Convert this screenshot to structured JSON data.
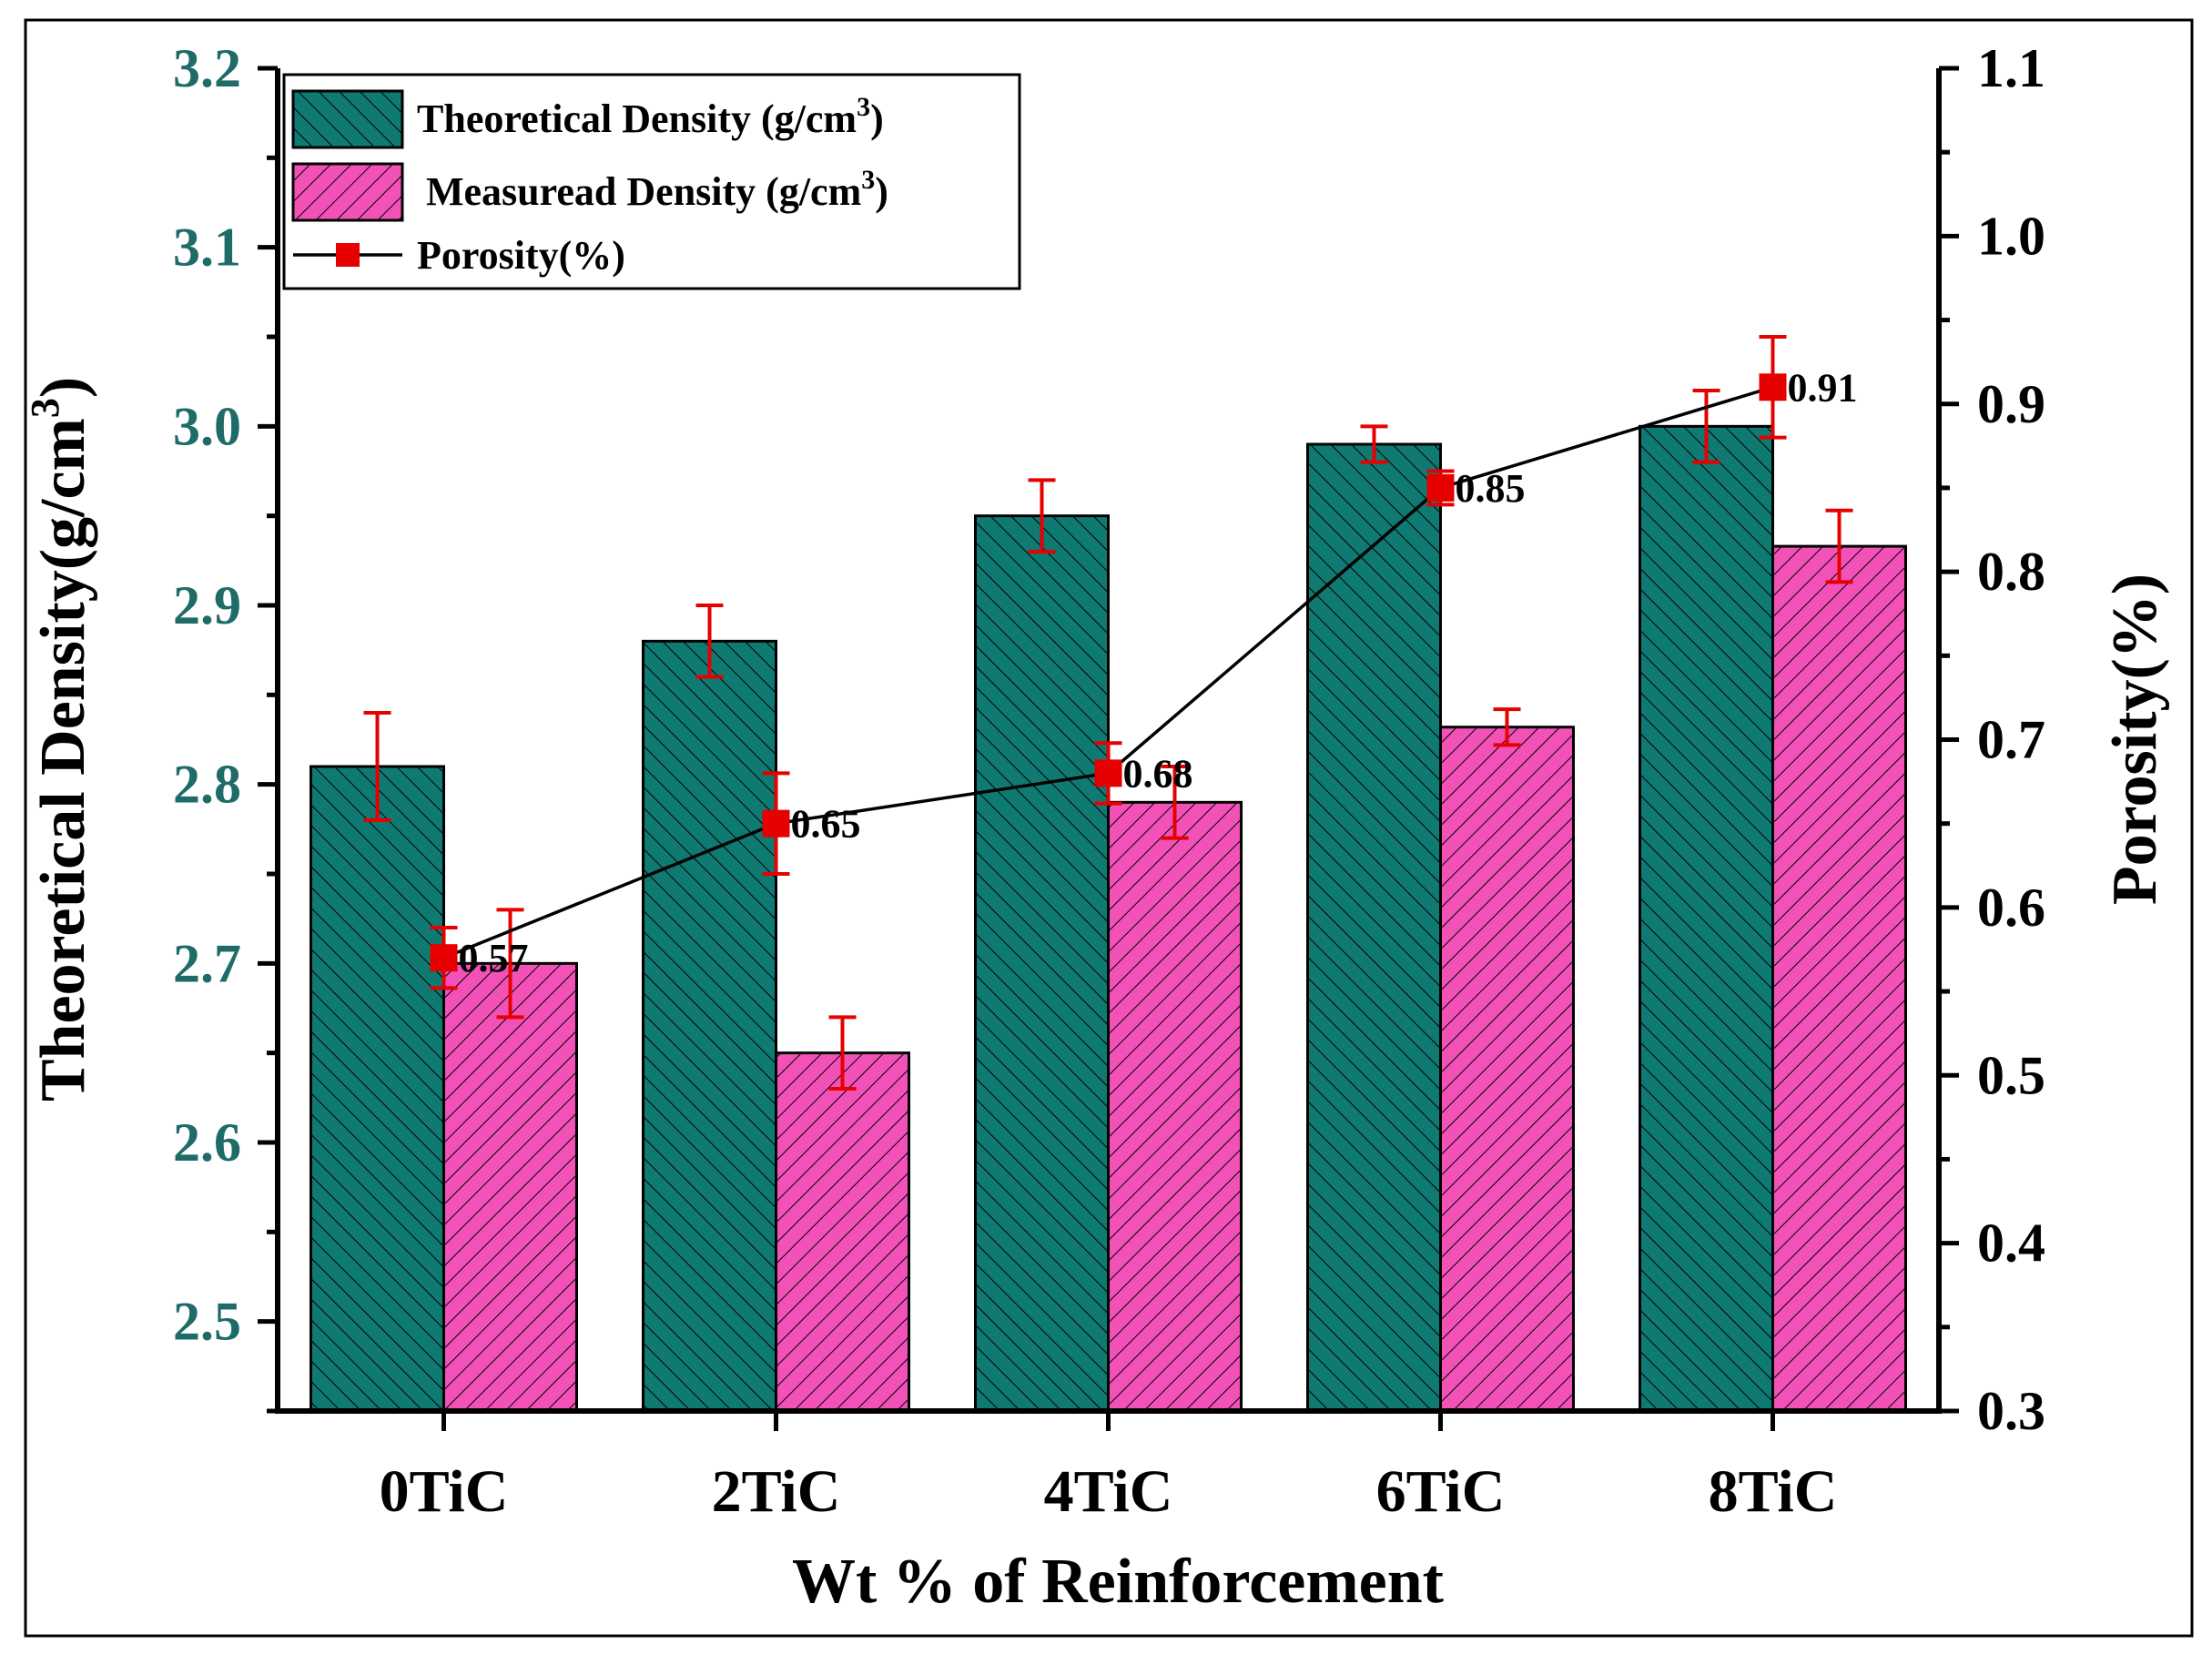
{
  "chart_data": {
    "type": "bar",
    "title": "",
    "xlabel": "Wt % of  Reinforcement",
    "ylabel": "Theoretical Density(g/cm",
    "ylabel_sup": "3",
    "ylabel_close": ")",
    "y2label": "Porosity(%)",
    "categories": [
      "0TiC",
      "2TiC",
      "4TiC",
      "6TiC",
      "8TiC"
    ],
    "ylim": [
      2.45,
      3.2
    ],
    "yticks": [
      2.5,
      2.6,
      2.7,
      2.8,
      2.9,
      3.0,
      3.1,
      3.2
    ],
    "ytick_labels": [
      "2.5",
      "2.6",
      "2.7",
      "2.8",
      "2.9",
      "3.0",
      "3.1",
      "3.2"
    ],
    "y2lim": [
      0.3,
      1.1
    ],
    "y2ticks": [
      0.3,
      0.4,
      0.5,
      0.6,
      0.7,
      0.8,
      0.9,
      1.0,
      1.1
    ],
    "y2tick_labels": [
      "0.3",
      "0.4",
      "0.5",
      "0.6",
      "0.7",
      "0.8",
      "0.9",
      "1.0",
      "1.1"
    ],
    "series": [
      {
        "name": "Theoretical Density (g/cm",
        "name_sup": "3",
        "name_close": ")",
        "kind": "bar",
        "axis": "left",
        "color": "#0f7a72",
        "hatch": "backslash",
        "values": [
          2.81,
          2.88,
          2.95,
          2.99,
          3.0
        ],
        "errors": [
          0.03,
          0.02,
          0.02,
          0.01,
          0.02
        ]
      },
      {
        "name": "Measuread Density (g/cm",
        "name_sup": "3",
        "name_close": ")",
        "kind": "bar",
        "axis": "left",
        "color": "#f252b8",
        "hatch": "slash",
        "values": [
          2.7,
          2.65,
          2.79,
          2.832,
          2.933
        ],
        "errors": [
          0.03,
          0.02,
          0.02,
          0.01,
          0.02
        ]
      },
      {
        "name": "Porosity(%)",
        "kind": "line",
        "axis": "right",
        "color": "#e60000",
        "line_color": "#000000",
        "values": [
          0.57,
          0.65,
          0.68,
          0.85,
          0.91
        ],
        "errors": [
          0.018,
          0.03,
          0.018,
          0.01,
          0.03
        ],
        "data_labels": [
          "0.57",
          "0.65",
          "0.68",
          "0.85",
          "0.91"
        ]
      }
    ],
    "legend_position": "top-left"
  }
}
